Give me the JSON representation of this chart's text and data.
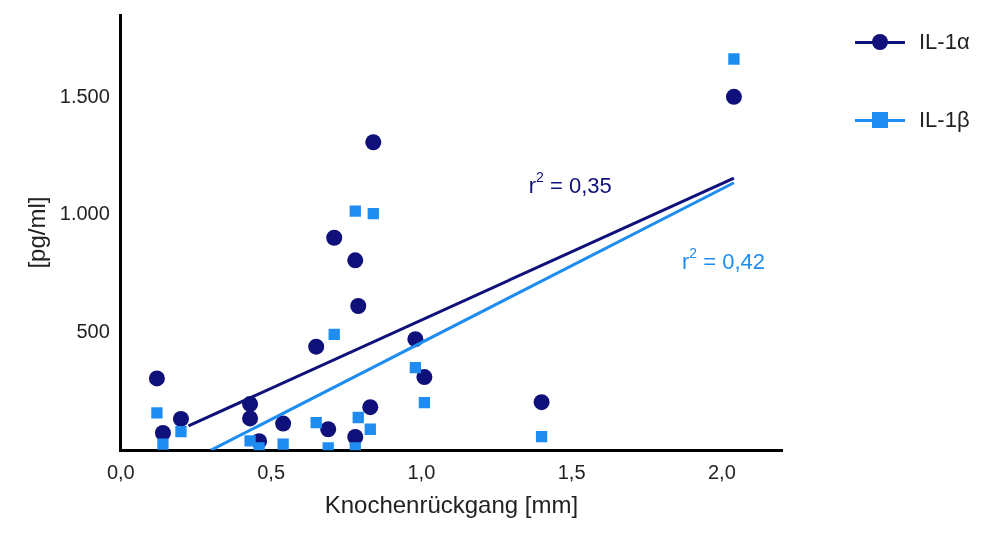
{
  "chart_data": {
    "type": "scatter",
    "xlabel": "Knochenrückgang [mm]",
    "ylabel": "[pg/ml]",
    "xlim": [
      0,
      2.2
    ],
    "xticks": [
      {
        "value": 0,
        "label": "0,0"
      },
      {
        "value": 0.5,
        "label": "0,5"
      },
      {
        "value": 1,
        "label": "1,0"
      },
      {
        "value": 1.5,
        "label": "1,5"
      },
      {
        "value": 2,
        "label": "2,0"
      }
    ],
    "ylim": [
      0,
      1850
    ],
    "yticks": [
      500,
      {
        "value": 1000,
        "label": "1.000"
      },
      {
        "value": 1500,
        "label": "1.500"
      }
    ],
    "grid": false,
    "legend": "top right",
    "series": [
      {
        "name": "IL-1α",
        "color": "#10107a",
        "marker": "circle",
        "x": [
          0.12,
          0.14,
          0.2,
          0.43,
          0.43,
          0.46,
          0.54,
          0.65,
          0.69,
          0.71,
          0.78,
          0.78,
          0.79,
          0.83,
          0.84,
          0.98,
          1.01,
          1.4,
          2.04
        ],
        "values": [
          305,
          73,
          133,
          196,
          135,
          38,
          113,
          440,
          89,
          903,
          807,
          56,
          613,
          183,
          1309,
          472,
          311,
          204,
          1502
        ]
      },
      {
        "name": "IL-1β",
        "color": "#1e8cf0",
        "marker": "square",
        "x": [
          0.12,
          0.14,
          0.2,
          0.43,
          0.46,
          0.54,
          0.65,
          0.69,
          0.71,
          0.78,
          0.78,
          0.79,
          0.83,
          0.84,
          0.98,
          1.01,
          1.4,
          2.04
        ],
        "values": [
          159,
          26,
          79,
          40,
          10,
          26,
          117,
          10,
          492,
          10,
          1016,
          139,
          89,
          1006,
          351,
          202,
          58,
          1663
        ]
      },
      {
        "type": "line",
        "color": "#10107a",
        "marker": "none",
        "x": [
          0.225,
          2.04
        ],
        "values": [
          103,
          1157
        ]
      },
      {
        "type": "line",
        "color": "#1e8cf0",
        "marker": "none",
        "x": [
          0.3,
          2.04
        ],
        "values": [
          0,
          1137
        ]
      }
    ],
    "annotations": [
      "r$^{2}$ = 0,35",
      "r$^{2}$ = 0,42"
    ]
  }
}
